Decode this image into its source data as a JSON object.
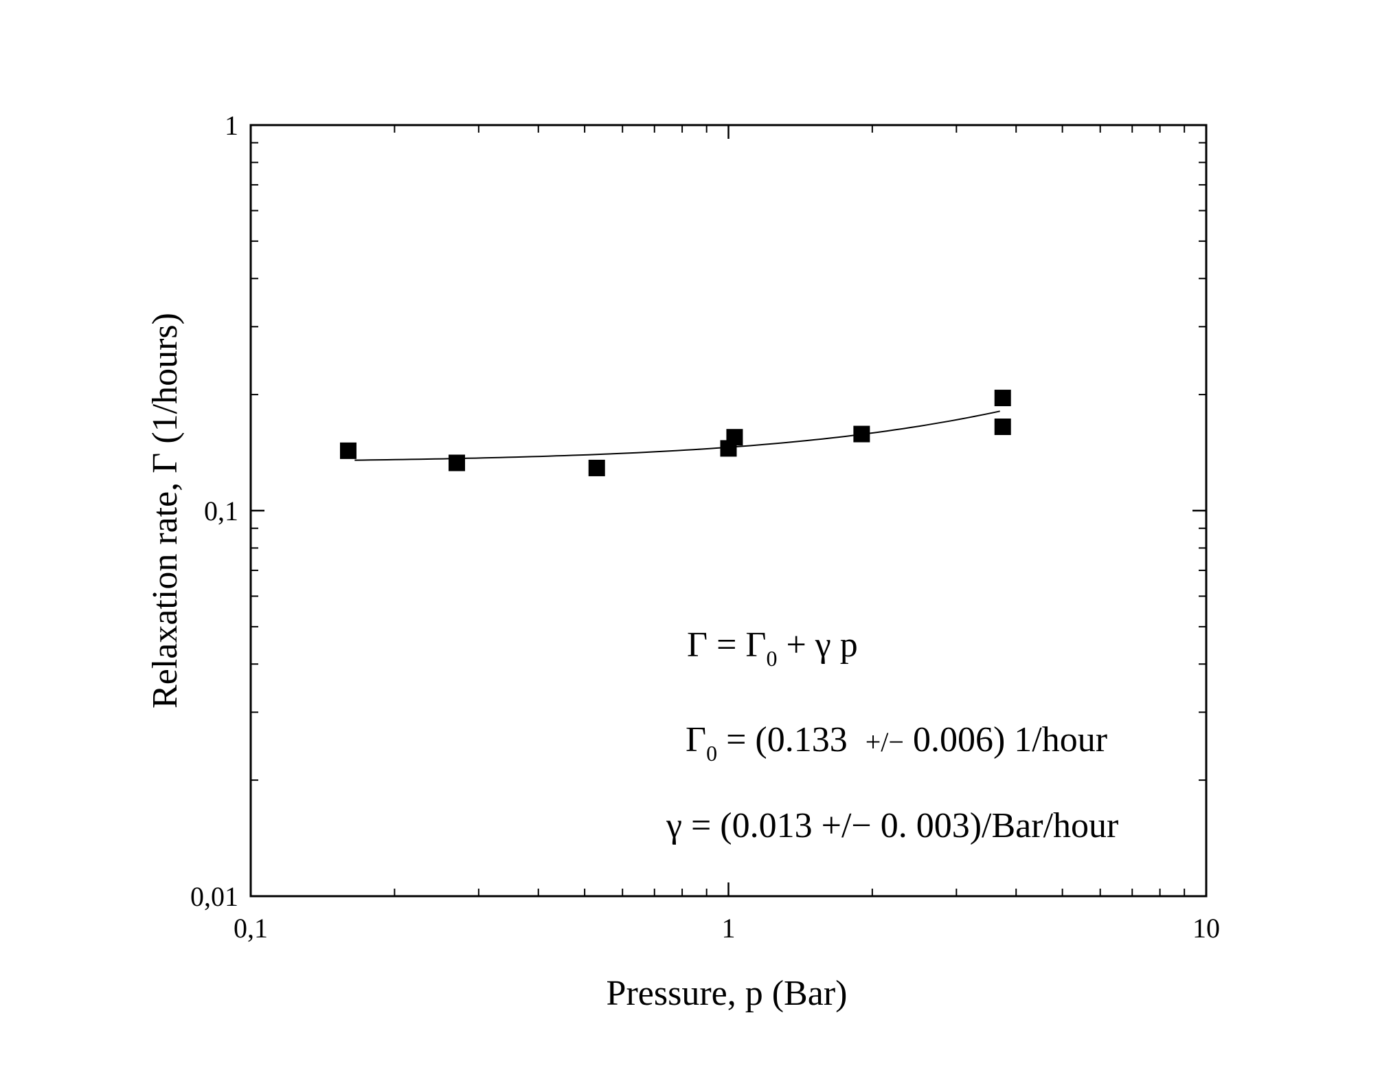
{
  "chart_data": {
    "type": "scatter",
    "xscale": "log",
    "yscale": "log",
    "xlim": [
      0.1,
      10
    ],
    "ylim": [
      0.01,
      1
    ],
    "xlabel": "Pressure, p (Bar)",
    "ylabel": "Relaxation rate, Γ (1/hours)",
    "x_tick_labels": [
      "0,1",
      "1",
      "10"
    ],
    "y_tick_labels": [
      "0,01",
      "0,1",
      "1"
    ],
    "x_tick_values": [
      0.1,
      1,
      10
    ],
    "y_tick_values": [
      0.01,
      0.1,
      1
    ],
    "series": [
      {
        "name": "data",
        "marker": "filled-square",
        "points": [
          {
            "x": 0.16,
            "y": 0.143
          },
          {
            "x": 0.27,
            "y": 0.133
          },
          {
            "x": 0.53,
            "y": 0.129
          },
          {
            "x": 1.0,
            "y": 0.145
          },
          {
            "x": 1.03,
            "y": 0.155
          },
          {
            "x": 1.9,
            "y": 0.158
          },
          {
            "x": 3.75,
            "y": 0.196
          },
          {
            "x": 3.75,
            "y": 0.165
          }
        ]
      },
      {
        "name": "fit",
        "style": "line",
        "model": "Γ = Γ0 + γ p",
        "gamma0": 0.133,
        "gamma": 0.013,
        "x_range": [
          0.165,
          3.7
        ]
      }
    ],
    "annotations": {
      "model": {
        "main": "Γ = Γ",
        "sub": "0",
        "rest": " + γ p"
      },
      "gamma0": {
        "main": "Γ",
        "sub": "0",
        "rest_a": " = (0.133  ",
        "pm": "+/−",
        "rest_b": " 0.006) 1/hour"
      },
      "gamma": {
        "text": "γ = (0.013 +/− 0. 003)/Bar/hour"
      }
    }
  }
}
